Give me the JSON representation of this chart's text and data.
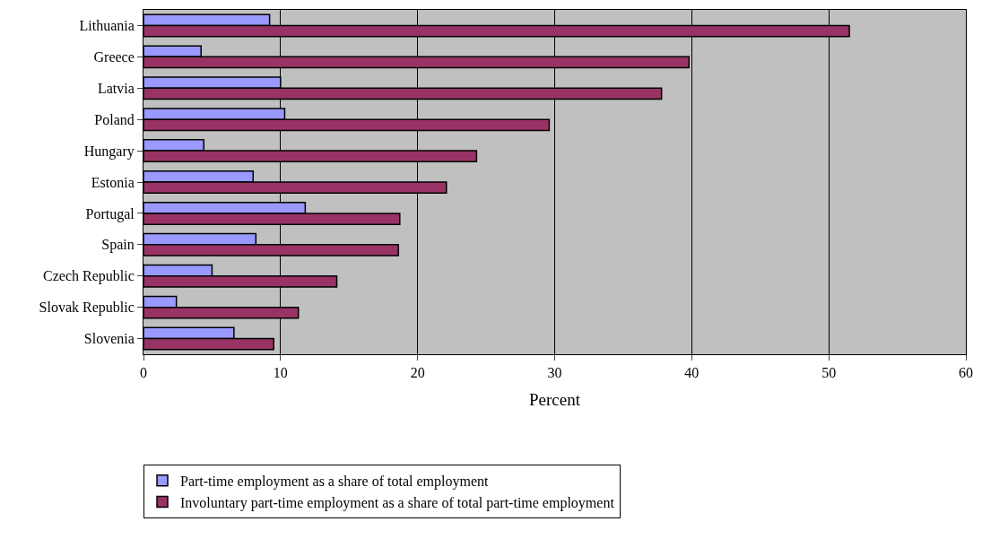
{
  "chart_data": {
    "type": "bar",
    "orientation": "horizontal",
    "categories": [
      "Lithuania",
      "Greece",
      "Latvia",
      "Poland",
      "Hungary",
      "Estonia",
      "Portugal",
      "Spain",
      "Czech Republic",
      "Slovak Republic",
      "Slovenia"
    ],
    "series": [
      {
        "name": "Part-time employment as a share of total employment",
        "color": "#9999ff",
        "values": [
          9.2,
          4.2,
          10.0,
          10.3,
          4.4,
          8.0,
          11.8,
          8.2,
          5.0,
          2.4,
          6.6
        ]
      },
      {
        "name": "Involuntary part-time employment as a share of total part-time employment",
        "color": "#993366",
        "values": [
          51.5,
          39.8,
          37.8,
          29.6,
          24.3,
          22.1,
          18.7,
          18.6,
          14.1,
          11.3,
          9.5
        ]
      }
    ],
    "xlabel": "Percent",
    "xlim": [
      0,
      60
    ],
    "xticks": [
      0,
      10,
      20,
      30,
      40,
      50,
      60
    ],
    "grid": "x",
    "legend": "bottom"
  }
}
